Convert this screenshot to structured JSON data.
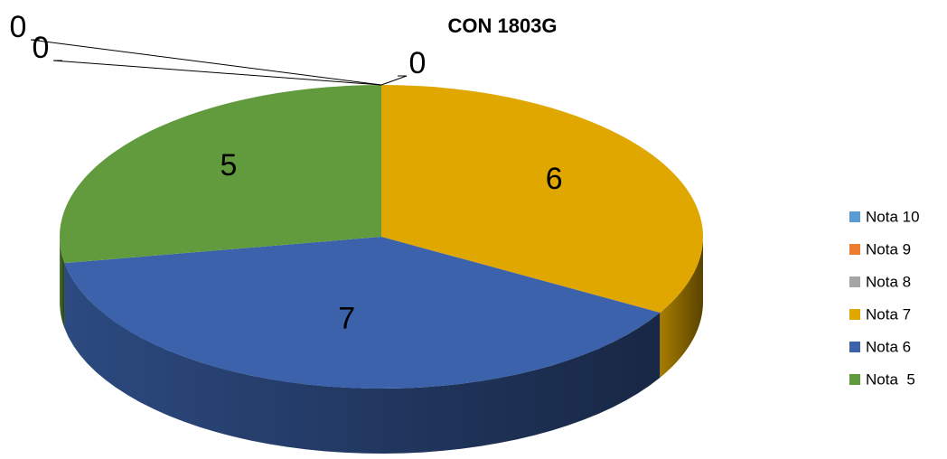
{
  "chart_data": {
    "type": "pie",
    "title": "CON 1803G",
    "categories": [
      "Nota 10",
      "Nota 9",
      "Nota 8",
      "Nota 7",
      "Nota 6",
      "Nota  5"
    ],
    "values": [
      0,
      0,
      0,
      6,
      7,
      5
    ],
    "colors": [
      "#5b9bd5",
      "#ed7d31",
      "#a5a5a5",
      "#dfa700",
      "#3b62aa",
      "#629b3d"
    ],
    "legend": "right"
  }
}
